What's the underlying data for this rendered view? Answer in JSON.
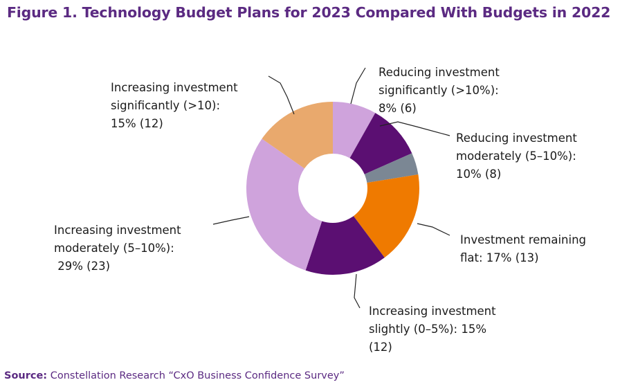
{
  "title": "Figure 1. Technology Budget Plans for 2023 Compared With Budgets in 2022",
  "source": {
    "prefix": "Source:",
    "text": "Constellation Research “CxO Business Confidence Survey”"
  },
  "chart_data": {
    "type": "pie",
    "donut": true,
    "slices": [
      {
        "name": "Reducing investment significantly (>10%)",
        "percent": 8,
        "count": 6,
        "color": "#cfa3dc",
        "label_lines": [
          "Reducing investment",
          "significantly (>10%):",
          "8% (6)"
        ]
      },
      {
        "name": "Reducing investment moderately (5–10%)",
        "percent": 10,
        "count": 8,
        "color": "#5b0f72",
        "label_lines": [
          "Reducing investment",
          "moderately (5–10%):",
          "10% (8)"
        ]
      },
      {
        "name": "Investment remaining flat",
        "percent": 4,
        "count": 3,
        "color": "#7b8794",
        "label_lines": []
      },
      {
        "name": "Investment remaining flat",
        "percent": 17,
        "count": 13,
        "color": "#ef7a00",
        "label_lines": [
          "Investment remaining",
          "flat: 17% (13)"
        ]
      },
      {
        "name": "Increasing investment slightly (0–5%)",
        "percent": 15,
        "count": 12,
        "color": "#5b0f72",
        "label_lines": [
          "Increasing investment",
          "slightly (0–5%): 15%",
          "(12)"
        ]
      },
      {
        "name": "Increasing investment moderately (5–10%)",
        "percent": 29,
        "count": 23,
        "color": "#cfa3dc",
        "label_lines": [
          "Increasing investment",
          "moderately (5–10%):",
          " 29% (23)"
        ]
      },
      {
        "name": "Increasing investment significantly (>10)",
        "percent": 15,
        "count": 12,
        "color": "#e9a96d",
        "label_lines": [
          "Increasing investment",
          "significantly (>10):",
          "15% (12)"
        ]
      }
    ]
  }
}
